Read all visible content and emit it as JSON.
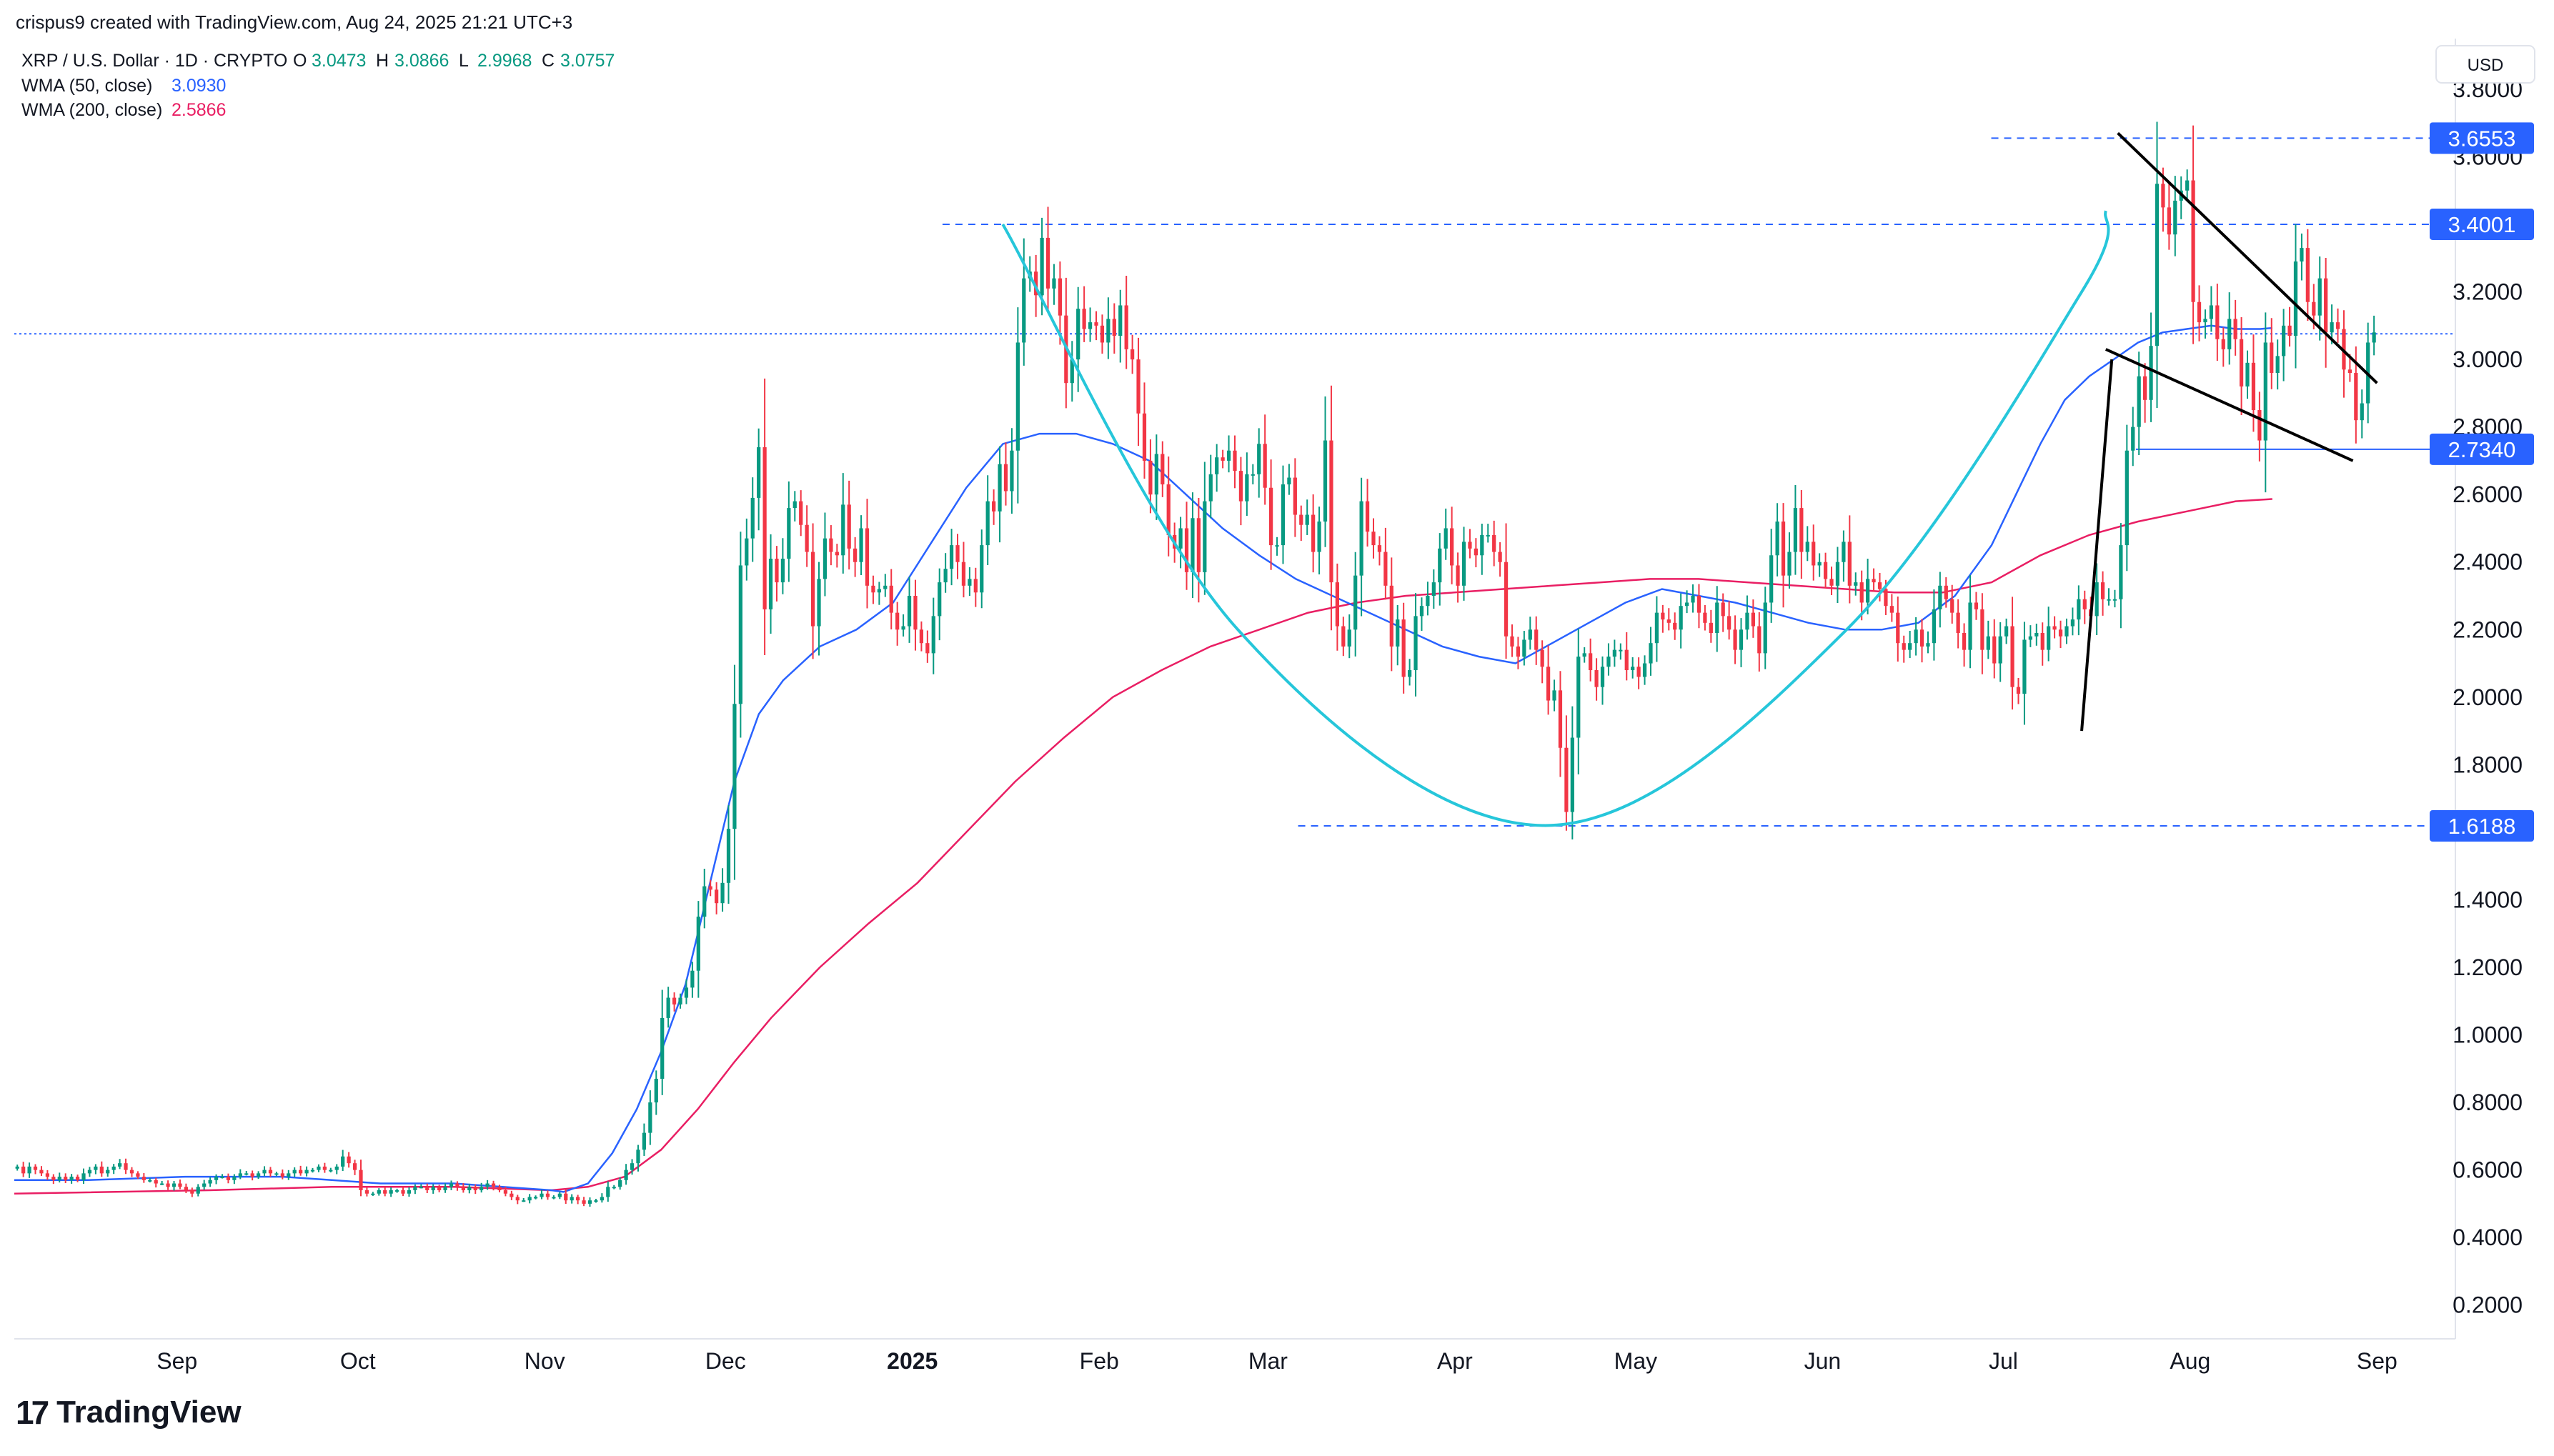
{
  "header": {
    "credit": "crispus9 created with TradingView.com, Aug 24, 2025 21:21 UTC+3",
    "symbol": "XRP / U.S. Dollar · 1D · CRYPTO",
    "ohlc": [
      {
        "label": "O",
        "value": "3.0473"
      },
      {
        "label": "H",
        "value": "3.0866"
      },
      {
        "label": "L",
        "value": "2.9968"
      },
      {
        "label": "C",
        "value": "3.0757"
      }
    ],
    "indicators": [
      {
        "label": "WMA (50, close)",
        "value": "3.0930",
        "color": "#2962ff"
      },
      {
        "label": "WMA (200, close)",
        "value": "2.5866",
        "color": "#e91e63"
      }
    ]
  },
  "currency": "USD",
  "logo_text": "TradingView",
  "colors": {
    "up": "#089981",
    "down": "#f23645",
    "wma50": "#2962ff",
    "wma200": "#e91e63",
    "cup_curve": "#26c6da",
    "level_line": "#2962ff",
    "price_line": "#2962ff"
  },
  "chart_data": {
    "type": "candlestick",
    "title": "XRP / U.S. Dollar · 1D · CRYPTO",
    "y_axis": {
      "min": 0.1,
      "max": 3.95,
      "ticks": [
        "0.2000",
        "0.4000",
        "0.6000",
        "0.8000",
        "1.0000",
        "1.2000",
        "1.4000",
        "1.6000",
        "1.8000",
        "2.0000",
        "2.2000",
        "2.4000",
        "2.6000",
        "2.8000",
        "3.0000",
        "3.2000",
        "3.4000",
        "3.6000",
        "3.8000"
      ]
    },
    "x_axis": {
      "start": "2024-08-05",
      "end": "2025-09-14",
      "labels": [
        {
          "text": "Sep",
          "date": "2024-09-01",
          "bold": false
        },
        {
          "text": "Oct",
          "date": "2024-10-01",
          "bold": false
        },
        {
          "text": "Nov",
          "date": "2024-11-01",
          "bold": false
        },
        {
          "text": "Dec",
          "date": "2024-12-01",
          "bold": false
        },
        {
          "text": "2025",
          "date": "2025-01-01",
          "bold": true
        },
        {
          "text": "Feb",
          "date": "2025-02-01",
          "bold": false
        },
        {
          "text": "Mar",
          "date": "2025-03-01",
          "bold": false
        },
        {
          "text": "Apr",
          "date": "2025-04-01",
          "bold": false
        },
        {
          "text": "May",
          "date": "2025-05-01",
          "bold": false
        },
        {
          "text": "Jun",
          "date": "2025-06-01",
          "bold": false
        },
        {
          "text": "Jul",
          "date": "2025-07-01",
          "bold": false
        },
        {
          "text": "Aug",
          "date": "2025-08-01",
          "bold": false
        },
        {
          "text": "Sep",
          "date": "2025-09-01",
          "bold": false
        }
      ]
    },
    "first_candle_date": "2024-08-05",
    "closes": [
      0.61,
      0.59,
      0.61,
      0.6,
      0.59,
      0.58,
      0.57,
      0.58,
      0.57,
      0.58,
      0.57,
      0.59,
      0.6,
      0.61,
      0.59,
      0.6,
      0.61,
      0.62,
      0.6,
      0.59,
      0.58,
      0.57,
      0.57,
      0.56,
      0.56,
      0.55,
      0.56,
      0.55,
      0.54,
      0.53,
      0.55,
      0.56,
      0.57,
      0.58,
      0.58,
      0.57,
      0.58,
      0.59,
      0.59,
      0.58,
      0.59,
      0.6,
      0.59,
      0.59,
      0.58,
      0.59,
      0.6,
      0.59,
      0.6,
      0.6,
      0.61,
      0.6,
      0.6,
      0.61,
      0.64,
      0.62,
      0.6,
      0.54,
      0.53,
      0.53,
      0.54,
      0.53,
      0.54,
      0.54,
      0.53,
      0.54,
      0.55,
      0.55,
      0.54,
      0.55,
      0.54,
      0.55,
      0.56,
      0.55,
      0.54,
      0.55,
      0.54,
      0.55,
      0.56,
      0.55,
      0.54,
      0.53,
      0.52,
      0.51,
      0.51,
      0.52,
      0.52,
      0.53,
      0.52,
      0.52,
      0.53,
      0.51,
      0.52,
      0.51,
      0.5,
      0.51,
      0.51,
      0.52,
      0.55,
      0.55,
      0.57,
      0.6,
      0.62,
      0.66,
      0.71,
      0.8,
      0.87,
      1.05,
      1.11,
      1.09,
      1.11,
      1.14,
      1.19,
      1.35,
      1.44,
      1.43,
      1.39,
      1.45,
      1.61,
      1.98,
      2.39,
      2.47,
      2.59,
      2.74,
      2.26,
      2.41,
      2.34,
      2.41,
      2.56,
      2.58,
      2.51,
      2.43,
      2.21,
      2.35,
      2.47,
      2.43,
      2.42,
      2.57,
      2.44,
      2.4,
      2.5,
      2.33,
      2.31,
      2.32,
      2.33,
      2.25,
      2.2,
      2.21,
      2.3,
      2.2,
      2.16,
      2.13,
      2.24,
      2.34,
      2.38,
      2.45,
      2.4,
      2.33,
      2.35,
      2.31,
      2.45,
      2.58,
      2.55,
      2.69,
      2.61,
      2.73,
      3.05,
      3.24,
      3.26,
      3.19,
      3.36,
      3.21,
      3.24,
      3.13,
      2.93,
      3.0,
      3.15,
      3.09,
      3.11,
      3.1,
      3.05,
      3.12,
      3.07,
      3.16,
      3.03,
      3.0,
      2.84,
      2.7,
      2.6,
      2.72,
      2.63,
      2.48,
      2.44,
      2.5,
      2.37,
      2.53,
      2.37,
      2.58,
      2.66,
      2.71,
      2.7,
      2.73,
      2.67,
      2.58,
      2.66,
      2.66,
      2.75,
      2.62,
      2.45,
      2.45,
      2.63,
      2.65,
      2.54,
      2.51,
      2.54,
      2.43,
      2.52,
      2.76,
      2.34,
      2.21,
      2.15,
      2.2,
      2.36,
      2.58,
      2.49,
      2.45,
      2.43,
      2.33,
      2.15,
      2.23,
      2.06,
      2.08,
      2.24,
      2.27,
      2.3,
      2.34,
      2.44,
      2.5,
      2.39,
      2.33,
      2.46,
      2.44,
      2.42,
      2.48,
      2.48,
      2.43,
      2.4,
      2.18,
      2.15,
      2.12,
      2.17,
      2.2,
      2.14,
      2.09,
      1.99,
      2.02,
      1.85,
      1.66,
      1.88,
      2.12,
      2.13,
      2.08,
      2.03,
      2.09,
      2.12,
      2.14,
      2.14,
      2.08,
      2.09,
      2.06,
      2.1,
      2.16,
      2.25,
      2.23,
      2.22,
      2.2,
      2.27,
      2.28,
      2.3,
      2.25,
      2.22,
      2.19,
      2.28,
      2.24,
      2.2,
      2.14,
      2.2,
      2.25,
      2.21,
      2.13,
      2.28,
      2.42,
      2.52,
      2.36,
      2.43,
      2.56,
      2.43,
      2.46,
      2.39,
      2.4,
      2.35,
      2.33,
      2.4,
      2.46,
      2.33,
      2.34,
      2.28,
      2.35,
      2.34,
      2.32,
      2.27,
      2.25,
      2.16,
      2.14,
      2.16,
      2.2,
      2.15,
      2.16,
      2.26,
      2.33,
      2.29,
      2.25,
      2.19,
      2.14,
      2.28,
      2.26,
      2.14,
      2.18,
      2.1,
      2.18,
      2.21,
      2.03,
      2.01,
      2.17,
      2.18,
      2.19,
      2.14,
      2.21,
      2.2,
      2.18,
      2.21,
      2.23,
      2.29,
      2.26,
      2.24,
      2.34,
      2.29,
      2.29,
      2.29,
      2.45,
      2.73,
      2.8,
      2.95,
      2.88,
      3.04,
      3.52,
      3.45,
      3.37,
      3.47,
      3.5,
      3.53,
      3.17,
      3.11,
      3.12,
      3.16,
      3.06,
      3.03,
      3.12,
      3.06,
      2.92,
      2.99,
      2.85,
      2.76,
      3.05,
      2.96,
      3.01,
      3.1,
      3.07,
      3.29,
      3.33,
      3.17,
      3.13,
      3.24,
      3.08,
      3.11,
      3.09,
      2.97,
      2.96,
      2.82,
      2.87,
      3.05,
      3.08
    ],
    "wma50": [
      [
        0.0,
        0.57
      ],
      [
        0.03,
        0.57
      ],
      [
        0.07,
        0.58
      ],
      [
        0.11,
        0.58
      ],
      [
        0.13,
        0.57
      ],
      [
        0.15,
        0.56
      ],
      [
        0.18,
        0.56
      ],
      [
        0.2,
        0.55
      ],
      [
        0.22,
        0.54
      ],
      [
        0.225,
        0.535
      ],
      [
        0.235,
        0.56
      ],
      [
        0.245,
        0.65
      ],
      [
        0.255,
        0.78
      ],
      [
        0.265,
        0.95
      ],
      [
        0.275,
        1.15
      ],
      [
        0.285,
        1.45
      ],
      [
        0.295,
        1.75
      ],
      [
        0.305,
        1.95
      ],
      [
        0.315,
        2.05
      ],
      [
        0.33,
        2.15
      ],
      [
        0.345,
        2.2
      ],
      [
        0.36,
        2.28
      ],
      [
        0.375,
        2.45
      ],
      [
        0.39,
        2.62
      ],
      [
        0.405,
        2.75
      ],
      [
        0.42,
        2.78
      ],
      [
        0.435,
        2.78
      ],
      [
        0.45,
        2.75
      ],
      [
        0.465,
        2.7
      ],
      [
        0.48,
        2.6
      ],
      [
        0.495,
        2.5
      ],
      [
        0.51,
        2.42
      ],
      [
        0.525,
        2.35
      ],
      [
        0.54,
        2.3
      ],
      [
        0.555,
        2.25
      ],
      [
        0.57,
        2.2
      ],
      [
        0.585,
        2.15
      ],
      [
        0.6,
        2.12
      ],
      [
        0.615,
        2.1
      ],
      [
        0.63,
        2.16
      ],
      [
        0.645,
        2.22
      ],
      [
        0.66,
        2.28
      ],
      [
        0.675,
        2.32
      ],
      [
        0.69,
        2.3
      ],
      [
        0.705,
        2.28
      ],
      [
        0.72,
        2.25
      ],
      [
        0.735,
        2.22
      ],
      [
        0.75,
        2.2
      ],
      [
        0.765,
        2.2
      ],
      [
        0.78,
        2.22
      ],
      [
        0.795,
        2.3
      ],
      [
        0.81,
        2.45
      ],
      [
        0.82,
        2.6
      ],
      [
        0.83,
        2.75
      ],
      [
        0.84,
        2.88
      ],
      [
        0.85,
        2.95
      ],
      [
        0.86,
        3.0
      ],
      [
        0.87,
        3.05
      ],
      [
        0.88,
        3.08
      ],
      [
        0.89,
        3.09
      ],
      [
        0.9,
        3.1
      ],
      [
        0.91,
        3.09
      ],
      [
        0.92,
        3.09
      ],
      [
        0.925,
        3.093
      ]
    ],
    "wma200": [
      [
        0.0,
        0.53
      ],
      [
        0.08,
        0.54
      ],
      [
        0.13,
        0.55
      ],
      [
        0.18,
        0.55
      ],
      [
        0.22,
        0.54
      ],
      [
        0.235,
        0.55
      ],
      [
        0.25,
        0.58
      ],
      [
        0.265,
        0.66
      ],
      [
        0.28,
        0.78
      ],
      [
        0.295,
        0.92
      ],
      [
        0.31,
        1.05
      ],
      [
        0.33,
        1.2
      ],
      [
        0.35,
        1.33
      ],
      [
        0.37,
        1.45
      ],
      [
        0.39,
        1.6
      ],
      [
        0.41,
        1.75
      ],
      [
        0.43,
        1.88
      ],
      [
        0.45,
        2.0
      ],
      [
        0.47,
        2.08
      ],
      [
        0.49,
        2.15
      ],
      [
        0.51,
        2.2
      ],
      [
        0.53,
        2.25
      ],
      [
        0.55,
        2.28
      ],
      [
        0.57,
        2.3
      ],
      [
        0.59,
        2.31
      ],
      [
        0.61,
        2.32
      ],
      [
        0.63,
        2.33
      ],
      [
        0.65,
        2.34
      ],
      [
        0.67,
        2.35
      ],
      [
        0.69,
        2.35
      ],
      [
        0.71,
        2.34
      ],
      [
        0.73,
        2.33
      ],
      [
        0.75,
        2.32
      ],
      [
        0.77,
        2.31
      ],
      [
        0.79,
        2.31
      ],
      [
        0.81,
        2.34
      ],
      [
        0.83,
        2.42
      ],
      [
        0.85,
        2.48
      ],
      [
        0.87,
        2.52
      ],
      [
        0.89,
        2.55
      ],
      [
        0.91,
        2.58
      ],
      [
        0.925,
        2.5866
      ]
    ]
  },
  "price_labels": [
    {
      "value": 3.6553,
      "text": "3.6553"
    },
    {
      "value": 3.4001,
      "text": "3.4001"
    },
    {
      "value": 2.734,
      "text": "2.7340"
    },
    {
      "value": 1.6188,
      "text": "1.6188"
    }
  ],
  "levels": [
    {
      "value": 3.6553,
      "from": "2025-06-29",
      "style": "dashed"
    },
    {
      "value": 3.4001,
      "from": "2025-01-06",
      "style": "dashed"
    },
    {
      "value": 1.6188,
      "from": "2025-03-06",
      "style": "dashed"
    },
    {
      "value": 2.734,
      "from": "2025-07-23",
      "style": "solid"
    }
  ],
  "current_price": 3.0757,
  "cup_curve": [
    [
      "2025-01-16",
      3.4
    ],
    [
      "2025-02-24",
      2.2
    ],
    [
      "2025-04-16",
      1.62
    ],
    [
      "2025-06-05",
      2.2
    ],
    [
      "2025-07-14",
      3.2
    ],
    [
      "2025-07-18",
      3.44
    ]
  ],
  "pennant": {
    "upper": [
      [
        "2025-07-20",
        3.67
      ],
      [
        "2025-09-01",
        2.93
      ]
    ],
    "lower": [
      [
        "2025-07-18",
        3.03
      ],
      [
        "2025-08-28",
        2.7
      ]
    ],
    "pole": [
      [
        "2025-07-14",
        1.9
      ],
      [
        "2025-07-19",
        3.0
      ]
    ]
  }
}
